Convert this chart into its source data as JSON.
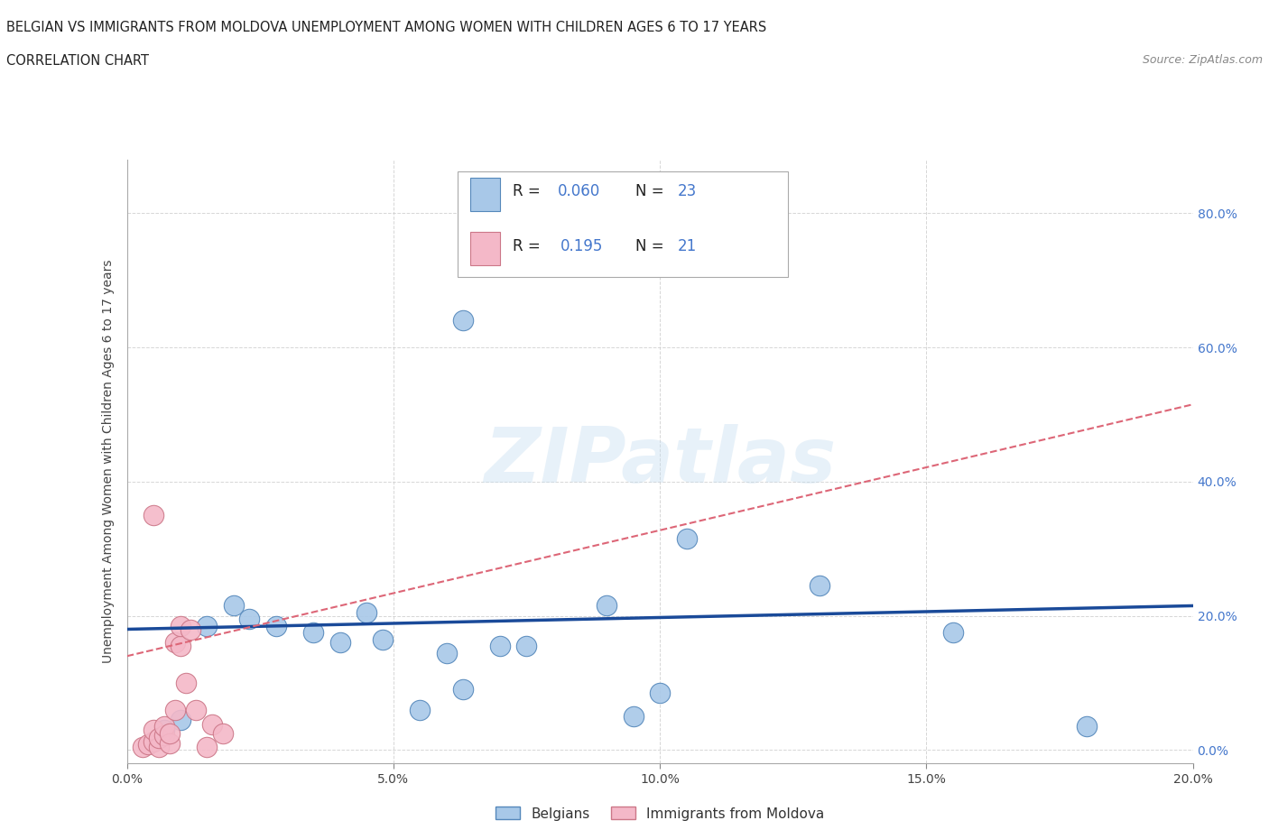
{
  "title_line1": "BELGIAN VS IMMIGRANTS FROM MOLDOVA UNEMPLOYMENT AMONG WOMEN WITH CHILDREN AGES 6 TO 17 YEARS",
  "title_line2": "CORRELATION CHART",
  "source_text": "Source: ZipAtlas.com",
  "ylabel": "Unemployment Among Women with Children Ages 6 to 17 years",
  "xlim": [
    0.0,
    0.2
  ],
  "ylim": [
    -0.02,
    0.88
  ],
  "xticks": [
    0.0,
    0.05,
    0.1,
    0.15,
    0.2
  ],
  "yticks": [
    0.0,
    0.2,
    0.4,
    0.6,
    0.8
  ],
  "legend_bottom_belgians": "Belgians",
  "legend_bottom_moldova": "Immigrants from Moldova",
  "watermark": "ZIPatlas",
  "blue_color": "#a8c8e8",
  "blue_edge": "#5588bb",
  "pink_color": "#f4b8c8",
  "pink_edge": "#cc7788",
  "blue_line_color": "#1a4a99",
  "pink_line_color": "#dd6677",
  "blue_scatter": [
    [
      0.007,
      0.03
    ],
    [
      0.01,
      0.045
    ],
    [
      0.015,
      0.185
    ],
    [
      0.02,
      0.215
    ],
    [
      0.023,
      0.195
    ],
    [
      0.028,
      0.185
    ],
    [
      0.035,
      0.175
    ],
    [
      0.04,
      0.16
    ],
    [
      0.045,
      0.205
    ],
    [
      0.048,
      0.165
    ],
    [
      0.055,
      0.06
    ],
    [
      0.06,
      0.145
    ],
    [
      0.063,
      0.09
    ],
    [
      0.063,
      0.64
    ],
    [
      0.07,
      0.155
    ],
    [
      0.075,
      0.155
    ],
    [
      0.09,
      0.215
    ],
    [
      0.095,
      0.05
    ],
    [
      0.1,
      0.085
    ],
    [
      0.105,
      0.315
    ],
    [
      0.13,
      0.245
    ],
    [
      0.155,
      0.175
    ],
    [
      0.18,
      0.035
    ]
  ],
  "pink_scatter": [
    [
      0.003,
      0.005
    ],
    [
      0.004,
      0.008
    ],
    [
      0.005,
      0.012
    ],
    [
      0.005,
      0.03
    ],
    [
      0.006,
      0.005
    ],
    [
      0.006,
      0.018
    ],
    [
      0.007,
      0.022
    ],
    [
      0.007,
      0.035
    ],
    [
      0.008,
      0.01
    ],
    [
      0.008,
      0.025
    ],
    [
      0.009,
      0.06
    ],
    [
      0.009,
      0.16
    ],
    [
      0.01,
      0.155
    ],
    [
      0.01,
      0.185
    ],
    [
      0.011,
      0.1
    ],
    [
      0.012,
      0.18
    ],
    [
      0.013,
      0.06
    ],
    [
      0.015,
      0.005
    ],
    [
      0.016,
      0.038
    ],
    [
      0.018,
      0.025
    ],
    [
      0.005,
      0.35
    ]
  ],
  "blue_trend_x": [
    0.0,
    0.2
  ],
  "blue_trend_y": [
    0.18,
    0.215
  ],
  "pink_trend_x": [
    0.0,
    0.2
  ],
  "pink_trend_y": [
    0.14,
    0.515
  ],
  "grid_color": "#cccccc",
  "background_color": "#ffffff"
}
